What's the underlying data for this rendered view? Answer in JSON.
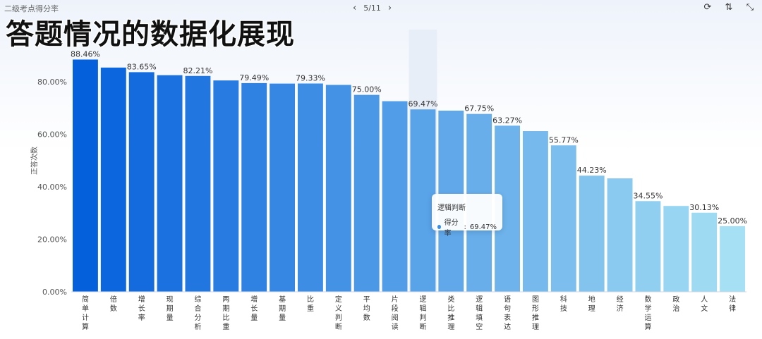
{
  "header": {
    "subtitle": "二级考点得分率",
    "pager": "5/11",
    "overlay_title": "答题情况的数据化展现"
  },
  "icons": [
    "prev-arrow-icon",
    "next-arrow-icon",
    "refresh-icon",
    "sort-icon",
    "collapse-icon"
  ],
  "tooltip": {
    "title": "逻辑判断",
    "series_label": "得分率",
    "value_text": "69.47%"
  },
  "colors": {
    "bar_start": "#0560dc",
    "bar_end": "#a6e0f4",
    "highlight": "#e8eef8",
    "tooltip_dot": "#3a8ee6"
  },
  "chart_data": {
    "type": "bar",
    "ylabel": "正答次数",
    "ylim": [
      0,
      90
    ],
    "yticks": [
      "0.00%",
      "20.00%",
      "40.00%",
      "60.00%",
      "80.00%"
    ],
    "ytick_values": [
      0,
      20,
      40,
      60,
      80
    ],
    "grid": false,
    "highlight_index": 12,
    "categories": [
      "简单计算",
      "倍数",
      "增长率",
      "现期量",
      "综合分析",
      "两期比重",
      "增长量",
      "基期量",
      "比重",
      "定义判断",
      "平均数",
      "片段阅读",
      "逻辑判断",
      "类比推理",
      "逻辑填空",
      "语句表达",
      "图形推理",
      "科技",
      "地理",
      "经济",
      "数学运算",
      "政治",
      "人文",
      "法律"
    ],
    "values": [
      88.46,
      85.4,
      83.65,
      82.5,
      82.21,
      80.5,
      79.49,
      79.3,
      79.33,
      78.8,
      75.0,
      72.6,
      69.47,
      69.0,
      67.75,
      63.27,
      61.2,
      55.77,
      44.23,
      43.2,
      34.55,
      32.7,
      30.13,
      25.0
    ],
    "data_labels": [
      "88.46%",
      "",
      "83.65%",
      "",
      "82.21%",
      "",
      "79.49%",
      "",
      "79.33%",
      "",
      "75.00%",
      "",
      "69.47%",
      "",
      "67.75%",
      "63.27%",
      "",
      "55.77%",
      "44.23%",
      "",
      "34.55%",
      "",
      "30.13%",
      "25.00%"
    ]
  }
}
